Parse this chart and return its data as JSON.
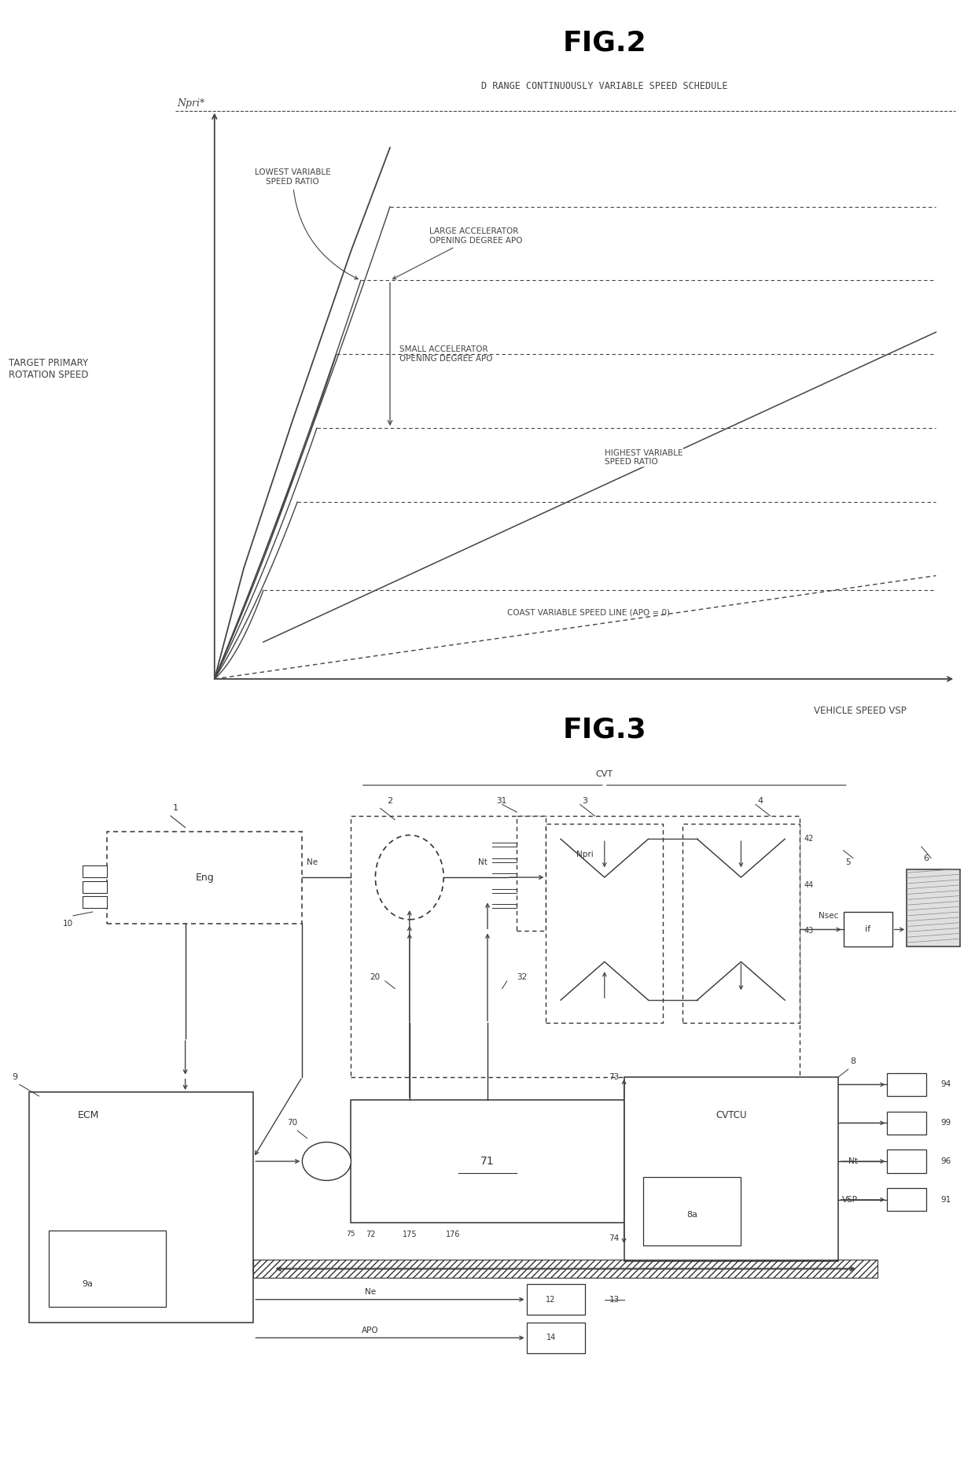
{
  "fig2_title": "FIG.2",
  "fig2_subtitle": "D RANGE CONTINUOUSLY VARIABLE SPEED SCHEDULE",
  "fig2_ylabel": "TARGET PRIMARY\nROTATION SPEED",
  "fig2_xlabel": "VEHICLE SPEED VSP",
  "fig2_ypri": "Npri*",
  "fig3_title": "FIG.3",
  "fig3_cvt": "CVT",
  "lc": "#444444",
  "lc2": "#333333"
}
